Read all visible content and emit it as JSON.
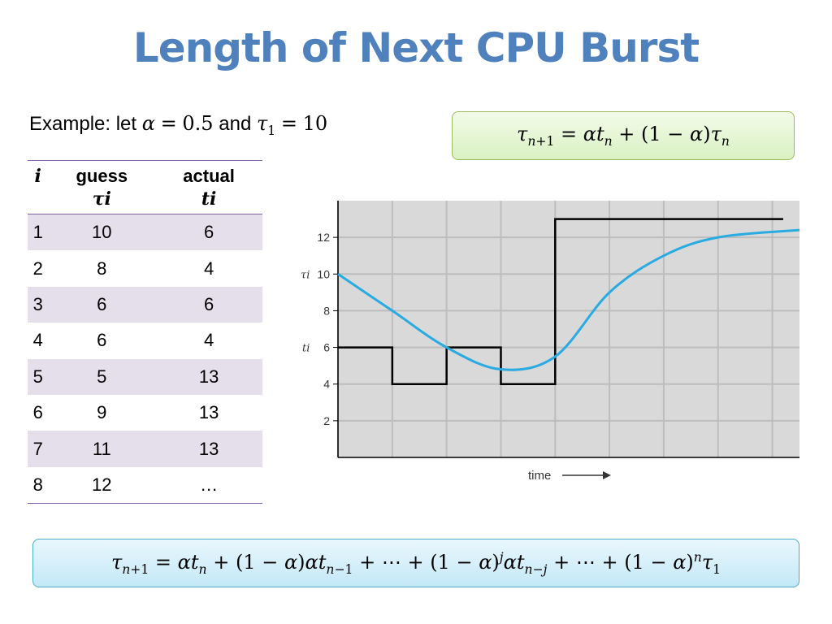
{
  "title": "Length of Next CPU Burst",
  "intro": {
    "prefix": "Example: let ",
    "alpha_value": "0.5",
    "and_text": " and ",
    "tau_value": "10"
  },
  "table": {
    "headers": [
      {
        "top": "i",
        "sub": ""
      },
      {
        "top": "guess",
        "sub": "τi"
      },
      {
        "top": "actual",
        "sub": "ti"
      }
    ],
    "rows": [
      {
        "i": "1",
        "guess": "10",
        "actual": "6"
      },
      {
        "i": "2",
        "guess": "8",
        "actual": "4"
      },
      {
        "i": "3",
        "guess": "6",
        "actual": "6"
      },
      {
        "i": "4",
        "guess": "6",
        "actual": "4"
      },
      {
        "i": "5",
        "guess": "5",
        "actual": "13"
      },
      {
        "i": "6",
        "guess": "9",
        "actual": "13"
      },
      {
        "i": "7",
        "guess": "11",
        "actual": "13"
      },
      {
        "i": "8",
        "guess": "12",
        "actual": "…"
      }
    ]
  },
  "chart_data": {
    "type": "line",
    "xlabel": "time",
    "ylabel_top": "τi",
    "ylabel_bottom": "ti",
    "yticks": [
      2,
      4,
      6,
      8,
      10,
      12
    ],
    "ylim": [
      0,
      14
    ],
    "xlim": [
      0,
      8.5
    ],
    "grid": true,
    "series": [
      {
        "kind": "step",
        "x": [
          0,
          1,
          1,
          2,
          2,
          3,
          3,
          4,
          4,
          8.2
        ],
        "values": [
          6,
          6,
          4,
          4,
          6,
          6,
          4,
          4,
          13,
          13
        ]
      },
      {
        "kind": "smooth",
        "x": [
          0,
          1,
          2,
          3,
          4,
          5,
          6,
          7,
          8.5
        ],
        "values": [
          10,
          8,
          6,
          4.8,
          5.5,
          9,
          11,
          12,
          12.4
        ]
      }
    ],
    "colors": {
      "step": "#000000",
      "smooth": "#29abe2",
      "grid": "#bdbdbd",
      "plot_bg": "#d9d9d9"
    }
  }
}
